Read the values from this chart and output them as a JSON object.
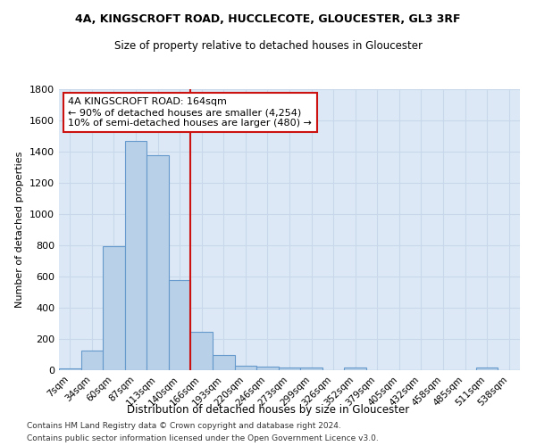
{
  "title1": "4A, KINGSCROFT ROAD, HUCCLECOTE, GLOUCESTER, GL3 3RF",
  "title2": "Size of property relative to detached houses in Gloucester",
  "xlabel": "Distribution of detached houses by size in Gloucester",
  "ylabel": "Number of detached properties",
  "bar_labels": [
    "7sqm",
    "34sqm",
    "60sqm",
    "87sqm",
    "113sqm",
    "140sqm",
    "166sqm",
    "193sqm",
    "220sqm",
    "246sqm",
    "273sqm",
    "299sqm",
    "326sqm",
    "352sqm",
    "379sqm",
    "405sqm",
    "432sqm",
    "458sqm",
    "485sqm",
    "511sqm",
    "538sqm"
  ],
  "bar_values": [
    10,
    125,
    795,
    1470,
    1380,
    575,
    245,
    100,
    30,
    25,
    20,
    15,
    0,
    15,
    0,
    0,
    0,
    0,
    0,
    15,
    0
  ],
  "bar_color": "#b8d0e8",
  "bar_edgecolor": "#6699cc",
  "plot_bg_color": "#dce8f5",
  "background_color": "#ffffff",
  "grid_color": "#c8d8ea",
  "vline_color": "#cc1111",
  "annotation_text": "4A KINGSCROFT ROAD: 164sqm\n← 90% of detached houses are smaller (4,254)\n10% of semi-detached houses are larger (480) →",
  "annotation_box_color": "#cc1111",
  "ylim": [
    0,
    1800
  ],
  "yticks": [
    0,
    200,
    400,
    600,
    800,
    1000,
    1200,
    1400,
    1600,
    1800
  ],
  "footnote1": "Contains HM Land Registry data © Crown copyright and database right 2024.",
  "footnote2": "Contains public sector information licensed under the Open Government Licence v3.0."
}
